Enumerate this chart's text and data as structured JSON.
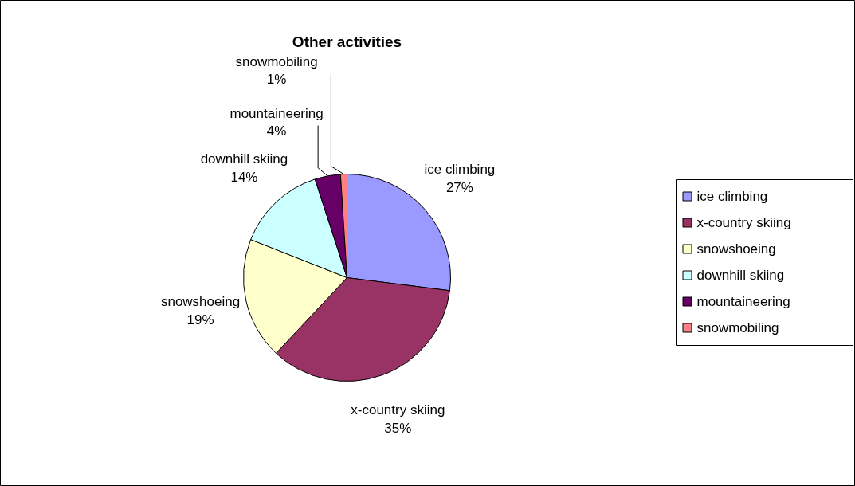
{
  "chart_data": {
    "type": "pie",
    "title": "Other activities",
    "categories": [
      "ice climbing",
      "x-country skiing",
      "snowshoeing",
      "downhill skiing",
      "mountaineering",
      "snowmobiling"
    ],
    "values": [
      27,
      35,
      19,
      14,
      4,
      1
    ],
    "value_labels": [
      "27%",
      "35%",
      "19%",
      "14%",
      "4%",
      "1%"
    ],
    "colors": [
      "#9999ff",
      "#993366",
      "#ffffcc",
      "#ccffff",
      "#660066",
      "#ff8080"
    ],
    "legend": "right"
  }
}
